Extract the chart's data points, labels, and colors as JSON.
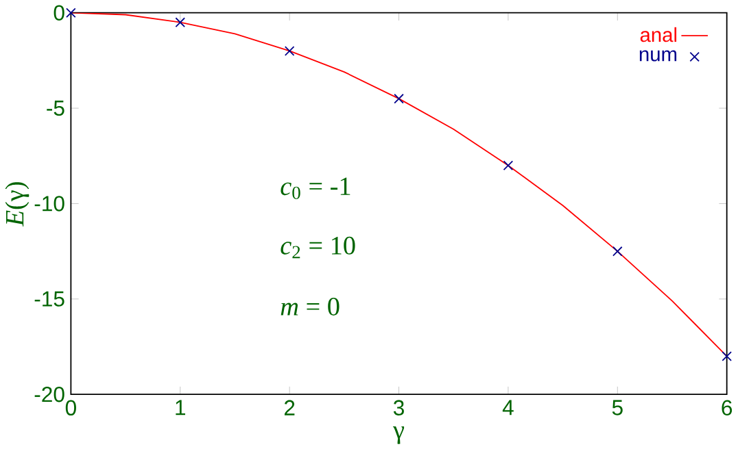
{
  "chart_data": {
    "type": "line",
    "xlabel": "γ",
    "ylabel": "*E*(γ)",
    "xlim": [
      0,
      6
    ],
    "ylim": [
      -20,
      0
    ],
    "xticks": [
      0,
      1,
      2,
      3,
      4,
      5,
      6
    ],
    "yticks": [
      -20,
      -15,
      -10,
      -5,
      0
    ],
    "series": [
      {
        "name": "anal",
        "color": "#ff0000",
        "marker": "none",
        "x": [
          0,
          0.5,
          1,
          1.5,
          2,
          2.5,
          3,
          3.5,
          4,
          4.5,
          5,
          5.5,
          6
        ],
        "values": [
          0,
          -0.1,
          -0.5,
          -1.1,
          -2,
          -3.1,
          -4.5,
          -6.1,
          -8,
          -10.1,
          -12.5,
          -15.1,
          -18
        ]
      },
      {
        "name": "num",
        "type": "scatter",
        "color": "#00008b",
        "marker": "cross",
        "x": [
          0,
          1,
          2,
          3,
          4,
          5,
          6
        ],
        "values": [
          0,
          -0.5,
          -2,
          -4.5,
          -8,
          -12.5,
          -18
        ]
      }
    ],
    "legend": "top right",
    "grid": false,
    "annotations": [
      "*c*$_{0}$ = -1",
      "*c*$_{2}$ = 10",
      "*m* = 0"
    ]
  }
}
